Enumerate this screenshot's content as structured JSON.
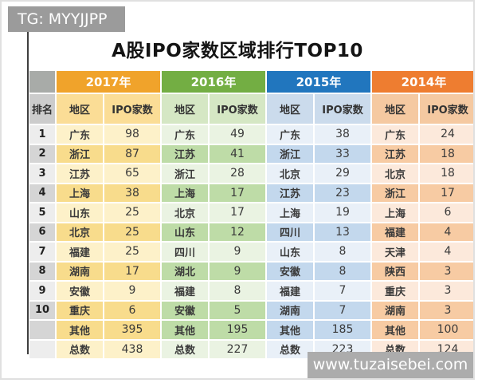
{
  "page": {
    "top_left_badge": "TG: MYYJJPP",
    "bottom_right_badge": "www.tuzaisebei.com"
  },
  "chart_data": {
    "type": "table",
    "title": "A股IPO家数区域排行TOP10",
    "rank_header": "排名",
    "sub_headers": [
      "地区",
      "IPO家数"
    ],
    "ranks": [
      "1",
      "2",
      "3",
      "4",
      "5",
      "6",
      "7",
      "8",
      "9",
      "10",
      "",
      ""
    ],
    "rank_colors": {
      "corner": "#a8aba8",
      "header": "#cccccc",
      "row_light": "#ededed",
      "row_dark": "#d5d5d5"
    },
    "year_groups": [
      {
        "year": "2017年",
        "colors": {
          "header": "#f0a32b",
          "sub": "#fbdd96",
          "row_light": "#fdf1c9",
          "row_dark": "#f8dc8c"
        },
        "rows": [
          [
            "广东",
            98
          ],
          [
            "浙江",
            87
          ],
          [
            "江苏",
            65
          ],
          [
            "上海",
            38
          ],
          [
            "山东",
            25
          ],
          [
            "北京",
            25
          ],
          [
            "福建",
            25
          ],
          [
            "湖南",
            17
          ],
          [
            "安徽",
            9
          ],
          [
            "重庆",
            6
          ],
          [
            "其他",
            395
          ],
          [
            "总数",
            438
          ]
        ]
      },
      {
        "year": "2016年",
        "colors": {
          "header": "#73ae43",
          "sub": "#d5e7c4",
          "row_light": "#eaf3e2",
          "row_dark": "#bedca7"
        },
        "rows": [
          [
            "广东",
            49
          ],
          [
            "江苏",
            41
          ],
          [
            "浙江",
            28
          ],
          [
            "上海",
            17
          ],
          [
            "北京",
            17
          ],
          [
            "山东",
            12
          ],
          [
            "四川",
            9
          ],
          [
            "湖北",
            9
          ],
          [
            "福建",
            8
          ],
          [
            "安徽",
            5
          ],
          [
            "其他",
            195
          ],
          [
            "总数",
            227
          ]
        ]
      },
      {
        "year": "2015年",
        "colors": {
          "header": "#2176be",
          "sub": "#cbdbec",
          "row_light": "#e9f0f8",
          "row_dark": "#c3d8ed"
        },
        "rows": [
          [
            "广东",
            38
          ],
          [
            "浙江",
            33
          ],
          [
            "北京",
            29
          ],
          [
            "江苏",
            23
          ],
          [
            "上海",
            19
          ],
          [
            "四川",
            13
          ],
          [
            "山东",
            8
          ],
          [
            "安徽",
            8
          ],
          [
            "福建",
            7
          ],
          [
            "湖南",
            7
          ],
          [
            "其他",
            185
          ],
          [
            "总数",
            223
          ]
        ]
      },
      {
        "year": "2014年",
        "colors": {
          "header": "#ee7d30",
          "sub": "#f5c9a1",
          "row_light": "#fce9db",
          "row_dark": "#f7cba3"
        },
        "rows": [
          [
            "广东",
            24
          ],
          [
            "江苏",
            18
          ],
          [
            "北京",
            18
          ],
          [
            "浙江",
            17
          ],
          [
            "上海",
            6
          ],
          [
            "福建",
            4
          ],
          [
            "天津",
            4
          ],
          [
            "陕西",
            3
          ],
          [
            "重庆",
            3
          ],
          [
            "湖南",
            3
          ],
          [
            "其他",
            100
          ],
          [
            "总数",
            124
          ]
        ]
      }
    ]
  }
}
